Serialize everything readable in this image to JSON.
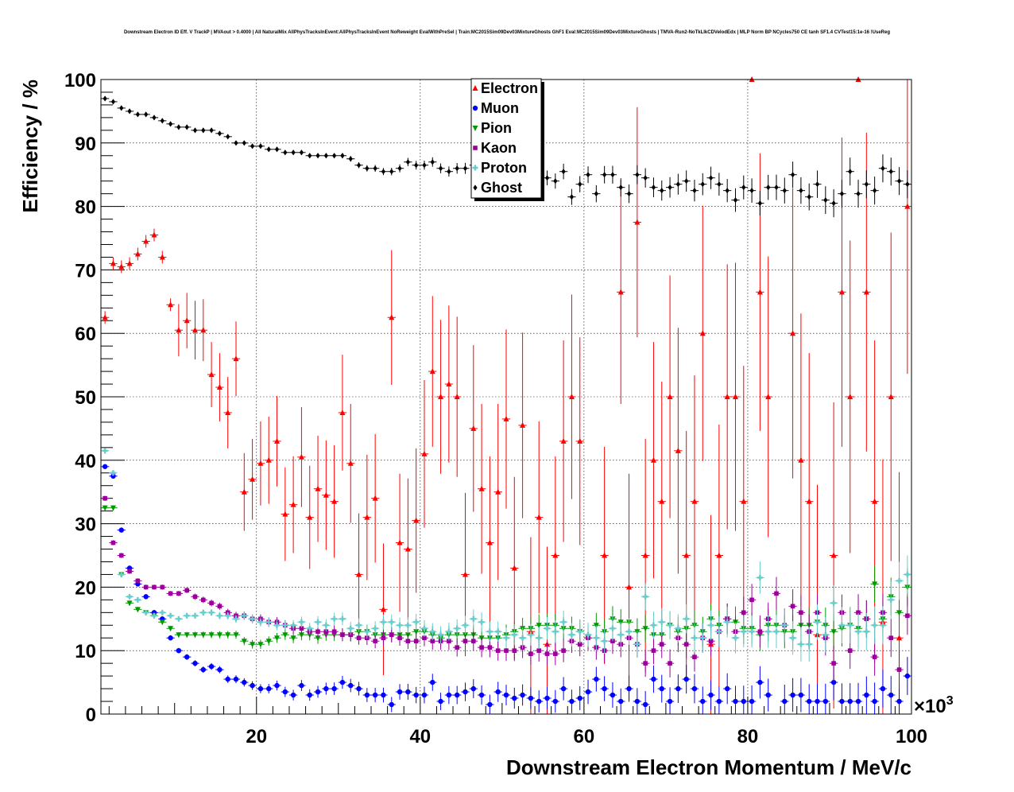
{
  "chart_data": {
    "type": "scatter",
    "title": "Downstream Electron ID Eff. V TrackP | MVAout > 0.4000 | All NaturalMix AllPhysTracksInEvent:AllPhysTracksInEvent NoReweight EvalWithPreSel | Train:MC2015Sim09Dev03MixtureGhosts GhF1 Eval:MC2015Sim09Dev03MixtureGhosts | TMVA-Run2-NoTkLlkCDVelodEdx | MLP Norm BP NCycles750 CE tanh SF1.4 CVTest15:1e-16 !UseReg",
    "xlabel": "Downstream Electron Momentum / MeV/c",
    "ylabel": "Efficiency / %",
    "x_multiplier_label": "×10",
    "x_multiplier_exp": "3",
    "xlim": [
      1,
      100
    ],
    "ylim": [
      0,
      100
    ],
    "x_ticks": [
      20,
      40,
      60,
      80,
      100
    ],
    "x_tick_labels": [
      "20",
      "40",
      "60",
      "80",
      "100"
    ],
    "y_ticks": [
      0,
      10,
      20,
      30,
      40,
      50,
      60,
      70,
      80,
      90,
      100
    ],
    "y_tick_labels": [
      "0",
      "10",
      "20",
      "30",
      "40",
      "50",
      "60",
      "70",
      "80",
      "90",
      "100"
    ],
    "grid": true,
    "legend_position": "top-center",
    "series": [
      {
        "name": "Electron",
        "marker": "triangle-up",
        "color": "#ff0000",
        "x": [
          1.5,
          2.5,
          3.5,
          4.5,
          5.5,
          6.5,
          7.5,
          8.5,
          9.5,
          10.5,
          11.5,
          12.5,
          13.5,
          14.5,
          15.5,
          16.5,
          17.5,
          18.5,
          19.5,
          20.5,
          21.5,
          22.5,
          23.5,
          24.5,
          25.5,
          26.5,
          27.5,
          28.5,
          29.5,
          30.5,
          31.5,
          32.5,
          33.5,
          34.5,
          35.5,
          36.5,
          37.5,
          38.5,
          39.5,
          40.5,
          41.5,
          42.5,
          43.5,
          44.5,
          45.5,
          46.5,
          47.5,
          48.5,
          49.5,
          50.5,
          51.5,
          52.5,
          53.5,
          54.5,
          55.5,
          56.5,
          57.5,
          58.5,
          59.5,
          62.5,
          64.5,
          65.5,
          66.5,
          67.5,
          68.5,
          69.5,
          70.5,
          71.5,
          72.5,
          73.5,
          74.5,
          75.5,
          76.5,
          77.5,
          78.5,
          79.5,
          80.5,
          81.5,
          82.5,
          85.5,
          86.5,
          87.5,
          88.5,
          90.5,
          91.5,
          92.5,
          93.5,
          94.5,
          95.5,
          96.5,
          97.5,
          98.5,
          99.5
        ],
        "y": [
          62.5,
          71,
          70.5,
          71,
          72.5,
          74.5,
          75.5,
          72,
          64.5,
          60.5,
          62,
          60.5,
          60.5,
          53.5,
          51.5,
          47.5,
          56,
          35,
          37,
          39.5,
          40,
          43,
          31.5,
          33,
          40.5,
          31,
          35.5,
          34.5,
          33.5,
          47.5,
          39.5,
          22,
          31,
          34,
          16.5,
          62.5,
          27,
          26,
          30.5,
          41,
          54,
          50,
          52,
          50,
          22,
          45,
          35.5,
          27,
          35,
          46.5,
          23,
          45.5,
          13,
          31,
          11,
          25,
          43,
          50,
          43,
          25,
          66.5,
          20,
          77.5,
          25,
          40,
          33.5,
          50,
          41.5,
          25,
          33.5,
          60,
          11,
          25,
          50,
          50,
          33.5,
          100,
          66.5,
          50,
          60,
          40,
          33.5,
          12.5,
          25,
          66.5,
          50,
          100,
          66.5,
          33.5,
          14.5,
          50,
          12,
          80
        ]
      },
      {
        "name": "Muon",
        "marker": "circle",
        "color": "#0000ff",
        "x": [
          1.5,
          2.5,
          3.5,
          4.5,
          5.5,
          6.5,
          7.5,
          8.5,
          9.5,
          10.5,
          11.5,
          12.5,
          13.5,
          14.5,
          15.5,
          16.5,
          17.5,
          18.5,
          19.5,
          20.5,
          21.5,
          22.5,
          23.5,
          24.5,
          25.5,
          26.5,
          27.5,
          28.5,
          29.5,
          30.5,
          31.5,
          32.5,
          33.5,
          34.5,
          35.5,
          36.5,
          37.5,
          38.5,
          39.5,
          40.5,
          41.5,
          42.5,
          43.5,
          44.5,
          45.5,
          46.5,
          47.5,
          48.5,
          49.5,
          50.5,
          51.5,
          52.5,
          53.5,
          54.5,
          55.5,
          56.5,
          57.5,
          58.5,
          59.5,
          60.5,
          61.5,
          62.5,
          63.5,
          64.5,
          65.5,
          66.5,
          67.5,
          68.5,
          69.5,
          70.5,
          71.5,
          72.5,
          73.5,
          74.5,
          75.5,
          76.5,
          77.5,
          78.5,
          79.5,
          80.5,
          81.5,
          82.5,
          84.5,
          85.5,
          86.5,
          87.5,
          88.5,
          89.5,
          90.5,
          91.5,
          92.5,
          93.5,
          94.5,
          95.5,
          96.5,
          97.5,
          98.5,
          99.5
        ],
        "y": [
          39,
          37.5,
          29,
          23,
          20.5,
          18.5,
          16,
          15,
          12,
          10,
          9,
          8,
          7,
          7.5,
          7,
          5.5,
          5.5,
          5,
          4.5,
          4,
          4,
          4.5,
          3.5,
          3,
          4.5,
          3,
          3.5,
          4,
          4,
          5,
          4.5,
          4,
          3,
          3,
          3,
          1.5,
          3.5,
          3.5,
          3,
          3,
          5,
          2,
          3,
          3,
          3.5,
          4,
          3,
          1.5,
          3.5,
          3,
          2.5,
          3,
          2.5,
          2,
          2.5,
          2,
          4,
          2,
          2.5,
          3.5,
          5.5,
          4,
          3,
          2,
          4,
          2,
          1.5,
          5.5,
          4,
          2,
          4,
          5.5,
          4,
          2,
          3,
          2,
          4,
          2,
          2,
          2,
          5,
          3,
          2,
          3,
          3,
          2,
          2,
          2,
          5,
          2,
          2,
          2,
          3,
          2,
          4,
          3,
          2,
          6
        ]
      },
      {
        "name": "Pion",
        "marker": "triangle-down",
        "color": "#009900",
        "x": [
          1.5,
          2.5,
          3.5,
          4.5,
          5.5,
          6.5,
          7.5,
          8.5,
          9.5,
          10.5,
          11.5,
          12.5,
          13.5,
          14.5,
          15.5,
          16.5,
          17.5,
          18.5,
          19.5,
          20.5,
          21.5,
          22.5,
          23.5,
          24.5,
          25.5,
          26.5,
          27.5,
          28.5,
          29.5,
          30.5,
          31.5,
          32.5,
          33.5,
          34.5,
          35.5,
          36.5,
          37.5,
          38.5,
          39.5,
          40.5,
          41.5,
          42.5,
          43.5,
          44.5,
          45.5,
          46.5,
          47.5,
          48.5,
          49.5,
          50.5,
          51.5,
          52.5,
          53.5,
          54.5,
          55.5,
          56.5,
          57.5,
          58.5,
          59.5,
          60.5,
          61.5,
          62.5,
          63.5,
          64.5,
          65.5,
          66.5,
          67.5,
          68.5,
          69.5,
          70.5,
          71.5,
          72.5,
          73.5,
          74.5,
          75.5,
          76.5,
          77.5,
          78.5,
          79.5,
          80.5,
          81.5,
          82.5,
          83.5,
          84.5,
          85.5,
          86.5,
          87.5,
          88.5,
          89.5,
          90.5,
          91.5,
          92.5,
          93.5,
          94.5,
          95.5,
          96.5,
          97.5,
          98.5,
          99.5
        ],
        "y": [
          32.5,
          32.5,
          22,
          17.5,
          16.5,
          16,
          15.5,
          14.5,
          13.5,
          12.5,
          12.5,
          12.5,
          12.5,
          12.5,
          12.5,
          12.5,
          12.5,
          11.5,
          11,
          11,
          11.5,
          12,
          12.5,
          12,
          12.5,
          12.5,
          12,
          12.5,
          12.5,
          12.5,
          12.5,
          13,
          13,
          12.5,
          12.5,
          12.5,
          12.5,
          12.5,
          13,
          13,
          12.5,
          12,
          12.5,
          12.5,
          12.5,
          12.5,
          12,
          12,
          12,
          12.5,
          13,
          13.5,
          13.5,
          14,
          14,
          14,
          13.5,
          13.5,
          13,
          12,
          14,
          13,
          15,
          14.5,
          14.5,
          13,
          13.5,
          12.5,
          12.5,
          14,
          13,
          13.5,
          14,
          13,
          15,
          14,
          15,
          14.5,
          13.5,
          13.5,
          12.5,
          14,
          14,
          13,
          13,
          14,
          14,
          14.5,
          14,
          13,
          13.5,
          14,
          13.5,
          15,
          20.5,
          15,
          18.5,
          16,
          20
        ]
      },
      {
        "name": "Kaon",
        "marker": "square",
        "color": "#990099",
        "x": [
          1.5,
          2.5,
          3.5,
          4.5,
          5.5,
          6.5,
          7.5,
          8.5,
          9.5,
          10.5,
          11.5,
          12.5,
          13.5,
          14.5,
          15.5,
          16.5,
          17.5,
          18.5,
          19.5,
          20.5,
          21.5,
          22.5,
          23.5,
          24.5,
          25.5,
          26.5,
          27.5,
          28.5,
          29.5,
          30.5,
          31.5,
          32.5,
          33.5,
          34.5,
          35.5,
          36.5,
          37.5,
          38.5,
          39.5,
          40.5,
          41.5,
          42.5,
          43.5,
          44.5,
          45.5,
          46.5,
          47.5,
          48.5,
          49.5,
          50.5,
          51.5,
          52.5,
          53.5,
          54.5,
          55.5,
          56.5,
          57.5,
          58.5,
          59.5,
          60.5,
          61.5,
          62.5,
          63.5,
          64.5,
          65.5,
          66.5,
          67.5,
          68.5,
          69.5,
          70.5,
          71.5,
          72.5,
          73.5,
          74.5,
          75.5,
          76.5,
          77.5,
          78.5,
          79.5,
          80.5,
          81.5,
          82.5,
          83.5,
          84.5,
          85.5,
          86.5,
          87.5,
          88.5,
          89.5,
          90.5,
          91.5,
          92.5,
          93.5,
          94.5,
          95.5,
          96.5,
          97.5,
          98.5,
          99.5
        ],
        "y": [
          34,
          27,
          25,
          22.5,
          21,
          20,
          20,
          20,
          19,
          19,
          19.5,
          18.5,
          18,
          17.5,
          17,
          16,
          15.5,
          15.5,
          15,
          15,
          14.5,
          14.5,
          14,
          13.5,
          13.5,
          13,
          13,
          13,
          13,
          12.5,
          12.5,
          12,
          12,
          11.5,
          12,
          12.5,
          12,
          11.5,
          11.5,
          12,
          11.5,
          11.5,
          11.5,
          10.5,
          11.5,
          11.5,
          10.5,
          10.5,
          10,
          10,
          10,
          10.5,
          9.5,
          10,
          9.5,
          9.5,
          10,
          11.5,
          11,
          12,
          10.5,
          10,
          11.5,
          11,
          12,
          11,
          8,
          10,
          11,
          8,
          12,
          11,
          9,
          12,
          11.5,
          13,
          15,
          13,
          16,
          18,
          13,
          15,
          19,
          14,
          17,
          16,
          13,
          16,
          12,
          8,
          16,
          10,
          16,
          15,
          9,
          16,
          12,
          7,
          15.5
        ]
      },
      {
        "name": "Proton",
        "marker": "cross",
        "color": "#66cccc",
        "x": [
          1.5,
          2.5,
          3.5,
          4.5,
          5.5,
          6.5,
          7.5,
          8.5,
          9.5,
          10.5,
          11.5,
          12.5,
          13.5,
          14.5,
          15.5,
          16.5,
          17.5,
          18.5,
          19.5,
          20.5,
          21.5,
          22.5,
          23.5,
          24.5,
          25.5,
          26.5,
          27.5,
          28.5,
          29.5,
          30.5,
          31.5,
          32.5,
          33.5,
          34.5,
          35.5,
          36.5,
          37.5,
          38.5,
          39.5,
          40.5,
          41.5,
          42.5,
          43.5,
          44.5,
          45.5,
          46.5,
          47.5,
          48.5,
          49.5,
          50.5,
          51.5,
          52.5,
          53.5,
          54.5,
          55.5,
          56.5,
          57.5,
          58.5,
          59.5,
          60.5,
          61.5,
          62.5,
          63.5,
          64.5,
          65.5,
          66.5,
          67.5,
          68.5,
          69.5,
          70.5,
          71.5,
          72.5,
          73.5,
          74.5,
          75.5,
          76.5,
          77.5,
          78.5,
          79.5,
          80.5,
          81.5,
          82.5,
          83.5,
          84.5,
          85.5,
          86.5,
          87.5,
          88.5,
          89.5,
          90.5,
          91.5,
          92.5,
          93.5,
          94.5,
          95.5,
          96.5,
          97.5,
          98.5,
          99.5
        ],
        "y": [
          41.5,
          38,
          22,
          18.5,
          18,
          16,
          15.5,
          16,
          15.5,
          15,
          15.5,
          15.5,
          16,
          16,
          15.5,
          15.5,
          15,
          15.5,
          15,
          14.5,
          14.5,
          14,
          14,
          14,
          14.5,
          13.5,
          14.5,
          14,
          15,
          15,
          13.5,
          14,
          13,
          13.5,
          14.5,
          14.5,
          14,
          14,
          14.5,
          13.5,
          13,
          12.5,
          13,
          13.5,
          14,
          15,
          14.5,
          13,
          13,
          12,
          12.5,
          12,
          12.5,
          12,
          13.5,
          13,
          14.5,
          12.5,
          13,
          12.5,
          12,
          11.5,
          13.5,
          12.5,
          13,
          11,
          18.5,
          14,
          14.5,
          14,
          13.5,
          15,
          12,
          12,
          14,
          13,
          14.5,
          12,
          13,
          13,
          21.5,
          13,
          13,
          14,
          12,
          11,
          11,
          14.5,
          12.5,
          17.5,
          14,
          14,
          13,
          13,
          14,
          14,
          18,
          21,
          22
        ]
      },
      {
        "name": "Ghost",
        "marker": "diamond",
        "color": "#000000",
        "x": [
          1.5,
          2.5,
          3.5,
          4.5,
          5.5,
          6.5,
          7.5,
          8.5,
          9.5,
          10.5,
          11.5,
          12.5,
          13.5,
          14.5,
          15.5,
          16.5,
          17.5,
          18.5,
          19.5,
          20.5,
          21.5,
          22.5,
          23.5,
          24.5,
          25.5,
          26.5,
          27.5,
          28.5,
          29.5,
          30.5,
          31.5,
          32.5,
          33.5,
          34.5,
          35.5,
          36.5,
          37.5,
          38.5,
          39.5,
          40.5,
          41.5,
          42.5,
          43.5,
          44.5,
          45.5,
          46.5,
          47.5,
          48.5,
          49.5,
          50.5,
          51.5,
          52.5,
          53.5,
          54.5,
          55.5,
          56.5,
          57.5,
          58.5,
          59.5,
          60.5,
          61.5,
          62.5,
          63.5,
          64.5,
          65.5,
          66.5,
          67.5,
          68.5,
          69.5,
          70.5,
          71.5,
          72.5,
          73.5,
          74.5,
          75.5,
          76.5,
          77.5,
          78.5,
          79.5,
          80.5,
          81.5,
          82.5,
          83.5,
          84.5,
          85.5,
          86.5,
          87.5,
          88.5,
          89.5,
          90.5,
          91.5,
          92.5,
          93.5,
          94.5,
          95.5,
          96.5,
          97.5,
          98.5,
          99.5
        ],
        "y": [
          97,
          96.5,
          95.5,
          95,
          94.5,
          94.5,
          94,
          93.5,
          93,
          92.5,
          92.5,
          92,
          92,
          92,
          91.5,
          91,
          90,
          90,
          89.5,
          89.5,
          89,
          89,
          88.5,
          88.5,
          88.5,
          88,
          88,
          88,
          88,
          88,
          87.5,
          86.5,
          86,
          86,
          85.5,
          85.5,
          86,
          87,
          86.5,
          86.5,
          87,
          86,
          85.5,
          86,
          86,
          86.5,
          85.5,
          85,
          85,
          86,
          85.5,
          85.5,
          85,
          84.5,
          84.5,
          84,
          85.5,
          81.5,
          83.5,
          85,
          82,
          85,
          85,
          83,
          82,
          85,
          84.5,
          83,
          82.5,
          83,
          83.5,
          84,
          82.5,
          83.5,
          84.5,
          83.5,
          82.5,
          81,
          83,
          82.5,
          80.5,
          83,
          83,
          82.5,
          85,
          82.5,
          81.5,
          83.5,
          81,
          80.5,
          82,
          85.5,
          82,
          83.5,
          82.5,
          86,
          85.5,
          84,
          83.5
        ]
      }
    ]
  }
}
